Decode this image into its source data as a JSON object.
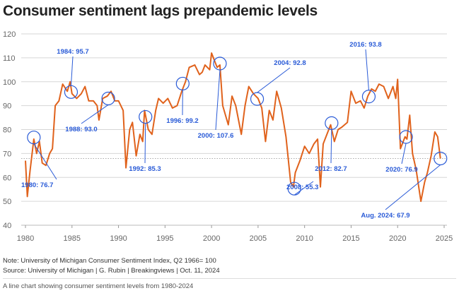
{
  "chart_data": {
    "type": "line",
    "title": "Consumer sentiment lags prepandemic levels",
    "xlabel": "",
    "ylabel": "",
    "xlim": [
      1980,
      2025
    ],
    "ylim": [
      40,
      120
    ],
    "x_ticks": [
      "1980",
      "1985",
      "1990",
      "1995",
      "2000",
      "2005",
      "2010",
      "2015",
      "2020",
      "2025"
    ],
    "y_ticks": [
      "40",
      "50",
      "60",
      "70",
      "80",
      "90",
      "100",
      "110",
      "120"
    ],
    "grid": true,
    "reference_line": 67.9,
    "series": [
      {
        "color": "#e0621c",
        "points": [
          [
            1980.0,
            67
          ],
          [
            1980.2,
            52
          ],
          [
            1980.5,
            63
          ],
          [
            1980.9,
            76
          ],
          [
            1981.2,
            70
          ],
          [
            1981.5,
            75
          ],
          [
            1981.8,
            66
          ],
          [
            1982.2,
            65
          ],
          [
            1982.6,
            70
          ],
          [
            1982.9,
            72
          ],
          [
            1983.2,
            90
          ],
          [
            1983.6,
            92
          ],
          [
            1984.0,
            99
          ],
          [
            1984.5,
            96
          ],
          [
            1984.8,
            100
          ],
          [
            1985.0,
            95
          ],
          [
            1985.5,
            93
          ],
          [
            1986.0,
            95
          ],
          [
            1986.4,
            98
          ],
          [
            1986.8,
            92
          ],
          [
            1987.3,
            92
          ],
          [
            1987.7,
            90
          ],
          [
            1987.9,
            84
          ],
          [
            1988.3,
            93
          ],
          [
            1988.8,
            94
          ],
          [
            1989.2,
            96
          ],
          [
            1989.6,
            92
          ],
          [
            1990.0,
            92
          ],
          [
            1990.5,
            88
          ],
          [
            1990.8,
            64
          ],
          [
            1991.2,
            80
          ],
          [
            1991.5,
            83
          ],
          [
            1991.9,
            69
          ],
          [
            1992.3,
            78
          ],
          [
            1992.6,
            75
          ],
          [
            1992.8,
            88
          ],
          [
            1993.2,
            80
          ],
          [
            1993.6,
            78
          ],
          [
            1994.0,
            88
          ],
          [
            1994.3,
            93
          ],
          [
            1994.8,
            91
          ],
          [
            1995.3,
            93
          ],
          [
            1995.8,
            89
          ],
          [
            1996.3,
            90
          ],
          [
            1996.8,
            96
          ],
          [
            1997.2,
            100
          ],
          [
            1997.6,
            106
          ],
          [
            1998.2,
            107
          ],
          [
            1998.7,
            103
          ],
          [
            1999.0,
            104
          ],
          [
            1999.3,
            107
          ],
          [
            1999.8,
            105
          ],
          [
            2000.0,
            112
          ],
          [
            2000.6,
            106
          ],
          [
            2000.9,
            107
          ],
          [
            2001.2,
            90
          ],
          [
            2001.8,
            82
          ],
          [
            2002.2,
            94
          ],
          [
            2002.6,
            90
          ],
          [
            2003.2,
            78
          ],
          [
            2003.6,
            90
          ],
          [
            2004.0,
            98
          ],
          [
            2004.5,
            95
          ],
          [
            2005.0,
            93
          ],
          [
            2005.4,
            89
          ],
          [
            2005.8,
            75
          ],
          [
            2006.2,
            88
          ],
          [
            2006.6,
            84
          ],
          [
            2007.0,
            96
          ],
          [
            2007.5,
            89
          ],
          [
            2008.0,
            77
          ],
          [
            2008.5,
            58
          ],
          [
            2008.8,
            56
          ],
          [
            2009.0,
            62
          ],
          [
            2009.5,
            67
          ],
          [
            2010.0,
            73
          ],
          [
            2010.5,
            70
          ],
          [
            2011.0,
            74
          ],
          [
            2011.4,
            76
          ],
          [
            2011.7,
            56
          ],
          [
            2012.0,
            74
          ],
          [
            2012.4,
            78
          ],
          [
            2012.8,
            82
          ],
          [
            2013.2,
            75
          ],
          [
            2013.6,
            80
          ],
          [
            2014.0,
            81
          ],
          [
            2014.6,
            83
          ],
          [
            2015.0,
            96
          ],
          [
            2015.5,
            91
          ],
          [
            2016.0,
            92
          ],
          [
            2016.4,
            89
          ],
          [
            2016.8,
            94
          ],
          [
            2017.2,
            97
          ],
          [
            2017.6,
            96
          ],
          [
            2018.0,
            99
          ],
          [
            2018.5,
            98
          ],
          [
            2019.0,
            93
          ],
          [
            2019.5,
            98
          ],
          [
            2019.8,
            93
          ],
          [
            2020.0,
            101
          ],
          [
            2020.3,
            72
          ],
          [
            2020.8,
            77
          ],
          [
            2021.0,
            76
          ],
          [
            2021.3,
            86
          ],
          [
            2021.6,
            70
          ],
          [
            2022.0,
            63
          ],
          [
            2022.5,
            50
          ],
          [
            2022.9,
            58
          ],
          [
            2023.2,
            62
          ],
          [
            2023.6,
            69
          ],
          [
            2024.0,
            79
          ],
          [
            2024.3,
            77
          ],
          [
            2024.6,
            67.9
          ]
        ]
      }
    ],
    "annotations": [
      {
        "x": 1980.9,
        "y": 76.7,
        "label": "1980: 76.7"
      },
      {
        "x": 1984.9,
        "y": 95.7,
        "label": "1984: 95.7"
      },
      {
        "x": 1988.9,
        "y": 93.0,
        "label": "1988: 93.0"
      },
      {
        "x": 1992.9,
        "y": 85.3,
        "label": "1992: 85.3"
      },
      {
        "x": 1996.9,
        "y": 99.2,
        "label": "1996: 99.2"
      },
      {
        "x": 2000.9,
        "y": 107.6,
        "label": "2000: 107.6"
      },
      {
        "x": 2004.9,
        "y": 92.8,
        "label": "2004: 92.8"
      },
      {
        "x": 2008.9,
        "y": 55.3,
        "label": "2008: 55.3"
      },
      {
        "x": 2012.9,
        "y": 82.7,
        "label": "2012: 82.7"
      },
      {
        "x": 2016.9,
        "y": 93.8,
        "label": "2016: 93.8"
      },
      {
        "x": 2020.9,
        "y": 76.9,
        "label": "2020: 76.9"
      },
      {
        "x": 2024.6,
        "y": 67.9,
        "label": "Aug. 2024: 67.9"
      }
    ],
    "annotation_color": "#2a5bd7"
  },
  "footer": {
    "note": "Note: University of Michigan Consumer Sentiment Index, Q2 1966= 100",
    "source": "Source: University of Michigan | G. Rubin | Breakingviews | Oct. 11, 2024",
    "alt_text": "A line chart showing consumer sentiment levels from 1980-2024"
  }
}
